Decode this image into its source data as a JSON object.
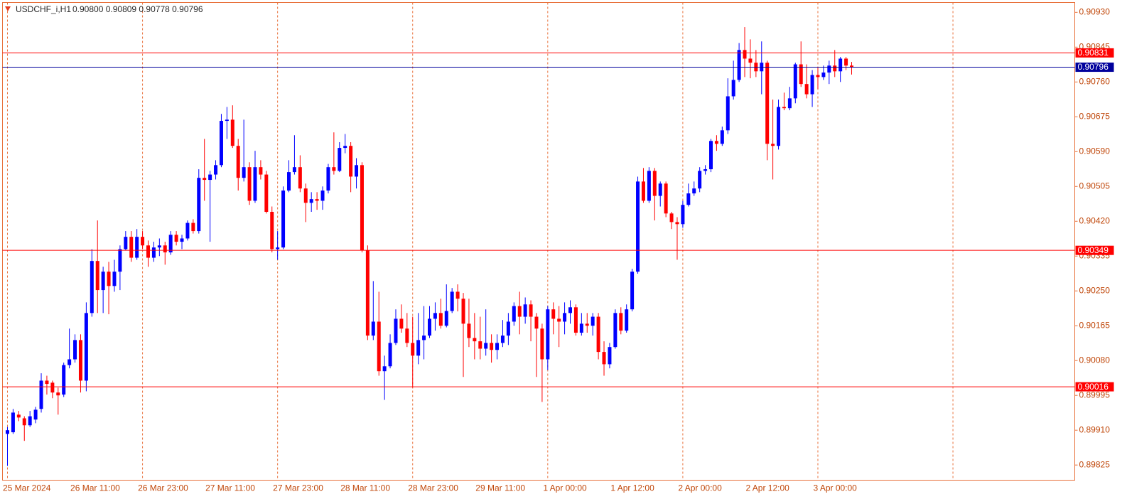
{
  "chart_data": {
    "type": "candlestick",
    "title": "USDCHF_i,H1",
    "subtitle": "0.90800 0.90809 0.90778 0.90796",
    "categories": [
      "25 Mar 2024",
      null,
      null,
      null,
      null,
      null,
      null,
      null,
      null,
      null,
      null,
      null,
      "26 Mar 11:00",
      null,
      null,
      null,
      null,
      null,
      null,
      null,
      null,
      null,
      null,
      null,
      "26 Mar 23:00",
      null,
      null,
      null,
      null,
      null,
      null,
      null,
      null,
      null,
      null,
      null,
      "27 Mar 11:00",
      null,
      null,
      null,
      null,
      null,
      null,
      null,
      null,
      null,
      null,
      null,
      "27 Mar 23:00",
      null,
      null,
      null,
      null,
      null,
      null,
      null,
      null,
      null,
      null,
      null,
      "28 Mar 11:00",
      null,
      null,
      null,
      null,
      null,
      null,
      null,
      null,
      null,
      null,
      null,
      "28 Mar 23:00",
      null,
      null,
      null,
      null,
      null,
      null,
      null,
      null,
      null,
      null,
      null,
      "29 Mar 11:00",
      null,
      null,
      null,
      null,
      null,
      null,
      null,
      null,
      null,
      null,
      null,
      "1 Apr 00:00",
      null,
      null,
      null,
      null,
      null,
      null,
      null,
      null,
      null,
      null,
      null,
      "1 Apr 12:00",
      null,
      null,
      null,
      null,
      null,
      null,
      null,
      null,
      null,
      null,
      null,
      "2 Apr 00:00",
      null,
      null,
      null,
      null,
      null,
      null,
      null,
      null,
      null,
      null,
      null,
      "2 Apr 12:00",
      null,
      null,
      null,
      null,
      null,
      null,
      null,
      null,
      null,
      null,
      null,
      "3 Apr 00:00",
      null,
      null,
      null,
      null,
      null,
      null
    ],
    "open": [
      0.89901,
      0.89905,
      0.89948,
      0.89939,
      0.89922,
      0.89936,
      0.89962,
      0.90031,
      0.90026,
      0.90002,
      0.89997,
      0.90069,
      0.90083,
      0.9013,
      0.90031,
      0.90196,
      0.90323,
      0.90252,
      0.90297,
      0.90262,
      0.90297,
      0.90352,
      0.90382,
      0.90331,
      0.90382,
      0.90361,
      0.90331,
      0.90356,
      0.90361,
      0.90344,
      0.90387,
      0.9037,
      0.90378,
      0.90416,
      0.90396,
      0.90526,
      0.90521,
      0.90534,
      0.90557,
      0.90665,
      0.90668,
      0.90604,
      0.90526,
      0.90552,
      0.9047,
      0.90552,
      0.90534,
      0.90443,
      0.90352,
      0.90356,
      0.90495,
      0.9054,
      0.90552,
      0.905,
      0.90465,
      0.90474,
      0.9047,
      0.90495,
      0.90552,
      0.90543,
      0.90599,
      0.90604,
      0.90529,
      0.90557,
      0.90349,
      0.90141,
      0.90175,
      0.90054,
      0.90066,
      0.90123,
      0.90182,
      0.90158,
      0.90123,
      0.90092,
      0.9013,
      0.90141,
      0.90182,
      0.90196,
      0.90165,
      0.90201,
      0.90248,
      0.90231,
      0.9017,
      0.90135,
      0.90127,
      0.90109,
      0.90123,
      0.90106,
      0.90123,
      0.90141,
      0.90175,
      0.90213,
      0.90187,
      0.90217,
      0.90187,
      0.90158,
      0.90083,
      0.90205,
      0.90182,
      0.90175,
      0.90196,
      0.9021,
      0.90148,
      0.9017,
      0.90165,
      0.90187,
      0.90101,
      0.90071,
      0.90113,
      0.90196,
      0.90153,
      0.90205,
      0.90297,
      0.90517,
      0.9047,
      0.90543,
      0.90482,
      0.90512,
      0.90439,
      0.90418,
      0.90413,
      0.9046,
      0.90488,
      0.905,
      0.90543,
      0.90547,
      0.90616,
      0.90609,
      0.90642,
      0.90725,
      0.90765,
      0.90838,
      0.90817,
      0.90807,
      0.90786,
      0.90807,
      0.90609,
      0.90604,
      0.90699,
      0.90696,
      0.9072,
      0.90803,
      0.90755,
      0.9073,
      0.90777,
      0.90772,
      0.90783,
      0.908,
      0.90786,
      0.90817,
      0.908
    ],
    "high": [
      0.89918,
      0.89962,
      0.89957,
      0.89944,
      0.89957,
      0.89967,
      0.90049,
      0.90043,
      0.90031,
      0.90014,
      0.90075,
      0.90158,
      0.90144,
      0.90144,
      0.90222,
      0.90352,
      0.90422,
      0.90309,
      0.90321,
      0.90326,
      0.90361,
      0.90396,
      0.90396,
      0.90401,
      0.90396,
      0.90373,
      0.9037,
      0.90378,
      0.9037,
      0.90396,
      0.90396,
      0.90387,
      0.90422,
      0.90425,
      0.90547,
      0.90621,
      0.90543,
      0.90569,
      0.90682,
      0.90699,
      0.90703,
      0.90621,
      0.90668,
      0.90564,
      0.90592,
      0.90569,
      0.90543,
      0.90456,
      0.90396,
      0.90505,
      0.90569,
      0.9063,
      0.90581,
      0.90512,
      0.90491,
      0.90491,
      0.90505,
      0.9056,
      0.90637,
      0.90613,
      0.90633,
      0.90613,
      0.90574,
      0.90564,
      0.90361,
      0.90274,
      0.90248,
      0.90092,
      0.90144,
      0.90205,
      0.90217,
      0.90196,
      0.90187,
      0.90196,
      0.90213,
      0.90213,
      0.90222,
      0.90231,
      0.90266,
      0.90257,
      0.90266,
      0.90245,
      0.90231,
      0.90196,
      0.90187,
      0.90205,
      0.90144,
      0.90144,
      0.90179,
      0.90196,
      0.90222,
      0.90248,
      0.90234,
      0.90227,
      0.90196,
      0.9017,
      0.90213,
      0.90222,
      0.90213,
      0.90222,
      0.90227,
      0.90217,
      0.90196,
      0.90196,
      0.90196,
      0.90196,
      0.90127,
      0.90123,
      0.90205,
      0.9021,
      0.90217,
      0.90304,
      0.90529,
      0.9055,
      0.90552,
      0.9055,
      0.90517,
      0.90517,
      0.90443,
      0.9043,
      0.9047,
      0.90512,
      0.90517,
      0.90552,
      0.90557,
      0.90621,
      0.9063,
      0.90651,
      0.90769,
      0.90812,
      0.90855,
      0.90894,
      0.90864,
      0.90838,
      0.90859,
      0.90812,
      0.90717,
      0.90717,
      0.90734,
      0.90748,
      0.90807,
      0.90859,
      0.90803,
      0.90789,
      0.90795,
      0.908,
      0.90812,
      0.90838,
      0.90821,
      0.90821,
      0.90809
    ],
    "low": [
      0.89823,
      0.89901,
      0.89932,
      0.89884,
      0.89918,
      0.89927,
      0.89953,
      0.89997,
      0.89988,
      0.89948,
      0.89991,
      0.90061,
      0.90075,
      0.90002,
      0.90005,
      0.90187,
      0.90196,
      0.90196,
      0.90193,
      0.90248,
      0.90252,
      0.90349,
      0.90321,
      0.90326,
      0.90352,
      0.90309,
      0.90321,
      0.90335,
      0.90314,
      0.90338,
      0.90361,
      0.90352,
      0.90373,
      0.9039,
      0.9039,
      0.9047,
      0.9037,
      0.90522,
      0.90552,
      0.90621,
      0.90599,
      0.90495,
      0.90517,
      0.9046,
      0.90465,
      0.90522,
      0.90439,
      0.90344,
      0.90326,
      0.90352,
      0.90491,
      0.90534,
      0.90491,
      0.90418,
      0.90443,
      0.90448,
      0.90448,
      0.90488,
      0.90534,
      0.9054,
      0.90586,
      0.90491,
      0.905,
      0.90344,
      0.9013,
      0.9013,
      0.90043,
      0.89984,
      0.90061,
      0.90118,
      0.90148,
      0.90113,
      0.90014,
      0.90071,
      0.90083,
      0.90135,
      0.90153,
      0.90158,
      0.90161,
      0.90196,
      0.902,
      0.9004,
      0.90113,
      0.90083,
      0.90083,
      0.90092,
      0.90075,
      0.90083,
      0.90113,
      0.90118,
      0.90165,
      0.90144,
      0.9017,
      0.90127,
      0.9004,
      0.89979,
      0.90057,
      0.90144,
      0.90113,
      0.90144,
      0.9017,
      0.90141,
      0.90141,
      0.90148,
      0.90141,
      0.90083,
      0.90043,
      0.90061,
      0.90109,
      0.90144,
      0.90148,
      0.902,
      0.90292,
      0.90465,
      0.90465,
      0.90422,
      0.90456,
      0.9043,
      0.90401,
      0.90326,
      0.90404,
      0.90456,
      0.90482,
      0.90491,
      0.90534,
      0.9054,
      0.90592,
      0.90604,
      0.90633,
      0.90717,
      0.9076,
      0.90772,
      0.90769,
      0.90772,
      0.9073,
      0.90569,
      0.90522,
      0.90595,
      0.90691,
      0.90691,
      0.90708,
      0.90748,
      0.9072,
      0.90699,
      0.90743,
      0.90765,
      0.90755,
      0.90772,
      0.9076,
      0.90789,
      0.90778
    ],
    "close": [
      0.8991,
      0.89953,
      0.89941,
      0.89922,
      0.89944,
      0.8996,
      0.90031,
      0.90023,
      0.90002,
      0.89995,
      0.90069,
      0.90083,
      0.9013,
      0.90031,
      0.90196,
      0.90323,
      0.90252,
      0.90297,
      0.90262,
      0.90297,
      0.90352,
      0.90382,
      0.90331,
      0.90382,
      0.90361,
      0.90331,
      0.90356,
      0.90361,
      0.90344,
      0.90387,
      0.9037,
      0.90378,
      0.90416,
      0.90396,
      0.90526,
      0.90521,
      0.90534,
      0.90557,
      0.90665,
      0.90668,
      0.90604,
      0.90526,
      0.90552,
      0.9047,
      0.90552,
      0.90534,
      0.90443,
      0.90352,
      0.90356,
      0.90495,
      0.9054,
      0.90552,
      0.905,
      0.90465,
      0.90474,
      0.9047,
      0.90495,
      0.90552,
      0.90543,
      0.90599,
      0.90604,
      0.90529,
      0.90557,
      0.90349,
      0.90141,
      0.90175,
      0.90054,
      0.90066,
      0.90123,
      0.90182,
      0.90158,
      0.90123,
      0.90092,
      0.9013,
      0.90141,
      0.90182,
      0.90196,
      0.90165,
      0.90201,
      0.90248,
      0.90231,
      0.9017,
      0.90135,
      0.90127,
      0.90109,
      0.90123,
      0.90106,
      0.90123,
      0.90141,
      0.90175,
      0.90213,
      0.90187,
      0.90217,
      0.90187,
      0.90158,
      0.90083,
      0.90205,
      0.90182,
      0.90175,
      0.90196,
      0.9021,
      0.90148,
      0.9017,
      0.90165,
      0.90187,
      0.90101,
      0.90071,
      0.90113,
      0.90196,
      0.90153,
      0.90205,
      0.90297,
      0.90517,
      0.9047,
      0.90543,
      0.90482,
      0.90512,
      0.90439,
      0.90418,
      0.90413,
      0.9046,
      0.90488,
      0.905,
      0.90543,
      0.90547,
      0.90616,
      0.90609,
      0.90642,
      0.90725,
      0.90765,
      0.90838,
      0.90817,
      0.90807,
      0.90786,
      0.90807,
      0.90609,
      0.90604,
      0.90699,
      0.90696,
      0.9072,
      0.90803,
      0.90755,
      0.9073,
      0.90777,
      0.90772,
      0.90783,
      0.908,
      0.90786,
      0.90817,
      0.908,
      0.90796
    ],
    "up_color": "#0000ff",
    "down_color": "#ff0000",
    "ylim": [
      0.89788,
      0.90954
    ],
    "yticks": [
      {
        "value": 0.9093,
        "label": "0.90930"
      },
      0.90845,
      {
        "value": 0.9076,
        "label": "0.90760"
      },
      0.90675,
      {
        "value": 0.9059,
        "label": "0.90590"
      },
      0.90505,
      {
        "value": 0.9042,
        "label": "0.90420"
      },
      0.90335,
      {
        "value": 0.9025,
        "label": "0.90250"
      },
      0.90165,
      {
        "value": 0.9008,
        "label": "0.90080"
      },
      0.89995,
      {
        "value": 0.8991,
        "label": "0.89910"
      },
      0.89825
    ],
    "hlines": [
      {
        "value": 0.90831,
        "color": "#ff0000"
      },
      {
        "value": 0.90796,
        "color": "#00009c"
      },
      {
        "value": 0.90349,
        "color": "#ff0000"
      },
      {
        "value": 0.90016,
        "color": "#ff0000"
      }
    ],
    "grid": true
  }
}
